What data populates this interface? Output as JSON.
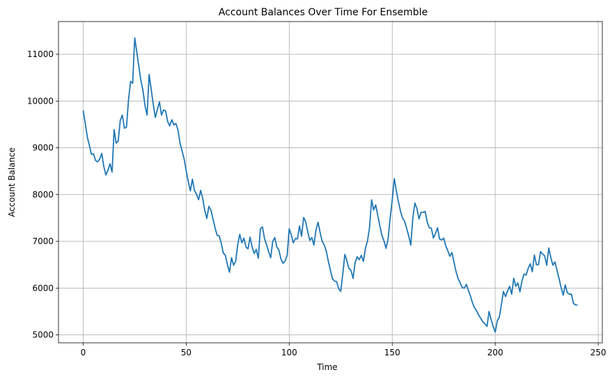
{
  "chart_data": {
    "type": "line",
    "title": "Account Balances Over Time For Ensemble",
    "xlabel": "Time",
    "ylabel": "Account Balance",
    "xlim": [
      -12,
      252
    ],
    "ylim": [
      4830,
      11700
    ],
    "xticks": [
      0,
      50,
      100,
      150,
      200,
      250
    ],
    "yticks": [
      5000,
      6000,
      7000,
      8000,
      9000,
      10000,
      11000
    ],
    "grid": true,
    "series": [
      {
        "color": "#1f77b4",
        "x": [
          0,
          1,
          2,
          3,
          4,
          5,
          6,
          7,
          8,
          9,
          10,
          11,
          12,
          13,
          14,
          15,
          16,
          17,
          18,
          19,
          20,
          21,
          22,
          23,
          24,
          25,
          26,
          27,
          28,
          29,
          30,
          31,
          32,
          33,
          34,
          35,
          36,
          37,
          38,
          39,
          40,
          41,
          42,
          43,
          44,
          45,
          46,
          47,
          48,
          49,
          50,
          51,
          52,
          53,
          54,
          55,
          56,
          57,
          58,
          59,
          60,
          61,
          62,
          63,
          64,
          65,
          66,
          67,
          68,
          69,
          70,
          71,
          72,
          73,
          74,
          75,
          76,
          77,
          78,
          79,
          80,
          81,
          82,
          83,
          84,
          85,
          86,
          87,
          88,
          89,
          90,
          91,
          92,
          93,
          94,
          95,
          96,
          97,
          98,
          99,
          100,
          101,
          102,
          103,
          104,
          105,
          106,
          107,
          108,
          109,
          110,
          111,
          112,
          113,
          114,
          115,
          116,
          117,
          118,
          119,
          120,
          121,
          122,
          123,
          124,
          125,
          126,
          127,
          128,
          129,
          130,
          131,
          132,
          133,
          134,
          135,
          136,
          137,
          138,
          139,
          140,
          141,
          142,
          143,
          144,
          145,
          146,
          147,
          148,
          149,
          150,
          151,
          152,
          153,
          154,
          155,
          156,
          157,
          158,
          159,
          160,
          161,
          162,
          163,
          164,
          165,
          166,
          167,
          168,
          169,
          170,
          171,
          172,
          173,
          174,
          175,
          176,
          177,
          178,
          179,
          180,
          181,
          182,
          183,
          184,
          185,
          186,
          187,
          188,
          189,
          190,
          191,
          192,
          193,
          194,
          195,
          196,
          197,
          198,
          199,
          200,
          201,
          202,
          203,
          204,
          205,
          206,
          207,
          208,
          209,
          210,
          211,
          212,
          213,
          214,
          215,
          216,
          217,
          218,
          219,
          220,
          221,
          222,
          223,
          224,
          225,
          226,
          227,
          228,
          229,
          230,
          231,
          232,
          233,
          234,
          235,
          236,
          237,
          238,
          239,
          240
        ],
        "values": [
          9800,
          9520,
          9230,
          9050,
          8860,
          8870,
          8730,
          8700,
          8760,
          8880,
          8600,
          8420,
          8520,
          8660,
          8480,
          9390,
          9100,
          9150,
          9590,
          9700,
          9420,
          9440,
          10030,
          10420,
          10380,
          11350,
          11050,
          10740,
          10440,
          10230,
          9900,
          9700,
          10570,
          10250,
          9930,
          9650,
          9820,
          9980,
          9700,
          9810,
          9790,
          9560,
          9470,
          9600,
          9490,
          9520,
          9380,
          9100,
          8930,
          8760,
          8510,
          8280,
          8080,
          8330,
          8090,
          8010,
          7890,
          8090,
          7920,
          7660,
          7490,
          7750,
          7670,
          7480,
          7290,
          7130,
          7120,
          6960,
          6750,
          6700,
          6500,
          6340,
          6650,
          6490,
          6570,
          6930,
          7150,
          6970,
          7070,
          6880,
          6840,
          7090,
          6880,
          6740,
          6830,
          6640,
          7270,
          7310,
          7060,
          6930,
          6780,
          6650,
          7000,
          7080,
          6880,
          6810,
          6620,
          6530,
          6580,
          6700,
          7270,
          7140,
          6970,
          7060,
          7050,
          7330,
          7110,
          7510,
          7420,
          7200,
          7020,
          7080,
          6920,
          7240,
          7410,
          7190,
          7000,
          6920,
          6790,
          6570,
          6380,
          6200,
          6150,
          6140,
          5990,
          5930,
          6300,
          6720,
          6580,
          6420,
          6380,
          6210,
          6550,
          6670,
          6610,
          6700,
          6570,
          6850,
          7010,
          7300,
          7890,
          7670,
          7780,
          7550,
          7330,
          7130,
          7010,
          6850,
          7050,
          7500,
          7880,
          8340,
          8080,
          7850,
          7650,
          7500,
          7430,
          7280,
          7120,
          6920,
          7500,
          7820,
          7700,
          7480,
          7620,
          7620,
          7640,
          7410,
          7290,
          7280,
          7070,
          7170,
          7290,
          7050,
          7030,
          7070,
          6900,
          6800,
          6680,
          6760,
          6550,
          6350,
          6200,
          6110,
          6010,
          6000,
          6080,
          5950,
          5830,
          5680,
          5580,
          5510,
          5420,
          5350,
          5280,
          5240,
          5180,
          5500,
          5330,
          5180,
          5060,
          5300,
          5380,
          5650,
          5930,
          5820,
          5940,
          6040,
          5870,
          6210,
          6040,
          6110,
          5920,
          6160,
          6300,
          6280,
          6420,
          6520,
          6350,
          6710,
          6500,
          6500,
          6780,
          6730,
          6690,
          6490,
          6860,
          6650,
          6490,
          6560,
          6380,
          6200,
          6010,
          5850,
          6070,
          5900,
          5870,
          5870,
          5670,
          5640,
          5640
        ]
      }
    ]
  }
}
